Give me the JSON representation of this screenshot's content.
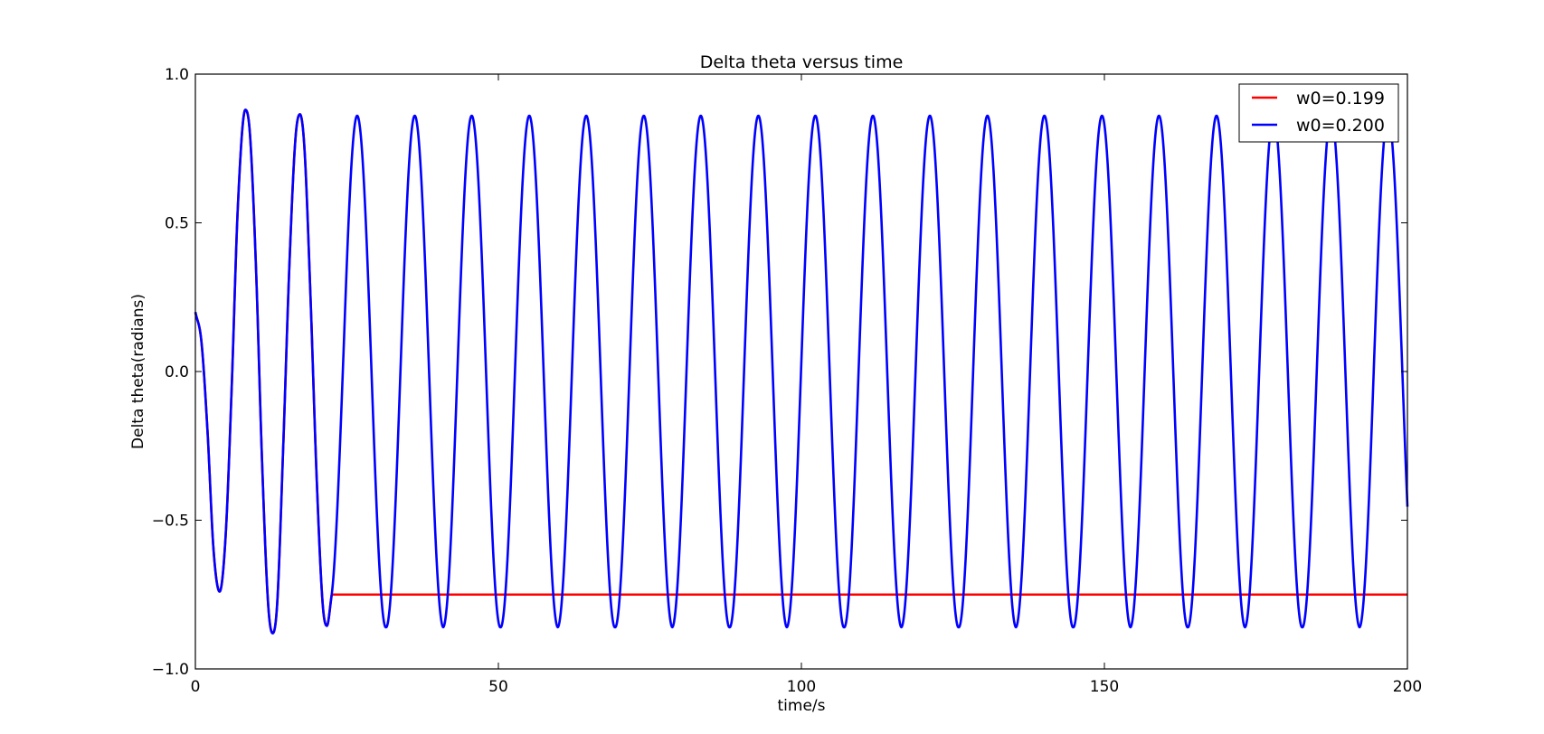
{
  "chart_data": {
    "type": "line",
    "title": "Delta theta versus time",
    "xlabel": "time/s",
    "ylabel": "Delta theta(radians)",
    "xlim": [
      0,
      200
    ],
    "ylim": [
      -1.0,
      1.0
    ],
    "xticks": [
      0,
      50,
      100,
      150,
      200
    ],
    "xtick_labels": [
      "0",
      "50",
      "100",
      "150",
      "200"
    ],
    "yticks": [
      -1.0,
      -0.5,
      0.0,
      0.5,
      1.0
    ],
    "ytick_labels": [
      "−1.0",
      "−0.5",
      "0.0",
      "0.5",
      "1.0"
    ],
    "grid": false,
    "legend_position": "top-right",
    "series": [
      {
        "name": "w0=0.199",
        "color": "#ff0000",
        "points": [
          [
            0,
            0.199
          ],
          [
            1,
            0.1
          ],
          [
            2,
            -0.2
          ],
          [
            3,
            -0.6
          ],
          [
            4,
            -0.74
          ],
          [
            5,
            -0.55
          ],
          [
            6,
            -0.05
          ],
          [
            7,
            0.55
          ],
          [
            8.25,
            0.88
          ],
          [
            9,
            0.8
          ],
          [
            10,
            0.35
          ],
          [
            11,
            -0.3
          ],
          [
            12,
            -0.78
          ],
          [
            12.75,
            -0.88
          ],
          [
            13.5,
            -0.78
          ],
          [
            14.5,
            -0.25
          ],
          [
            15.5,
            0.35
          ],
          [
            16.5,
            0.78
          ],
          [
            17.25,
            0.865
          ],
          [
            18,
            0.75
          ],
          [
            19,
            0.25
          ],
          [
            20,
            -0.35
          ],
          [
            21,
            -0.78
          ],
          [
            21.7,
            -0.855
          ],
          [
            22.5,
            -0.75
          ]
        ]
      },
      {
        "name": "w0=0.200",
        "color": "#0000ff",
        "points": [
          [
            0,
            0.2
          ],
          [
            1,
            0.1
          ],
          [
            2,
            -0.2
          ],
          [
            3,
            -0.6
          ],
          [
            4,
            -0.74
          ],
          [
            5,
            -0.55
          ],
          [
            6,
            -0.05
          ],
          [
            7,
            0.55
          ],
          [
            8.25,
            0.88
          ],
          [
            9,
            0.8
          ],
          [
            10,
            0.35
          ],
          [
            11,
            -0.3
          ],
          [
            12,
            -0.78
          ],
          [
            12.75,
            -0.88
          ],
          [
            13.5,
            -0.78
          ],
          [
            14.5,
            -0.25
          ],
          [
            15.5,
            0.35
          ],
          [
            16.5,
            0.78
          ],
          [
            17.25,
            0.865
          ],
          [
            18,
            0.75
          ],
          [
            19,
            0.25
          ],
          [
            20,
            -0.35
          ],
          [
            21,
            -0.78
          ],
          [
            21.7,
            -0.855
          ],
          [
            22.5,
            -0.75
          ]
        ],
        "oscillation": {
          "from_time": 22.5,
          "to_time": 200,
          "period": 9.45,
          "peak_times": [
            26.7,
            36.2,
            45.6,
            55.1,
            64.5,
            74.0,
            83.4,
            92.9,
            102.3,
            111.8,
            121.2,
            130.7,
            140.1,
            149.6,
            159.0,
            168.5,
            177.9,
            187.4,
            196.8
          ],
          "amplitude": 0.86,
          "end_value": -0.61
        }
      }
    ]
  }
}
